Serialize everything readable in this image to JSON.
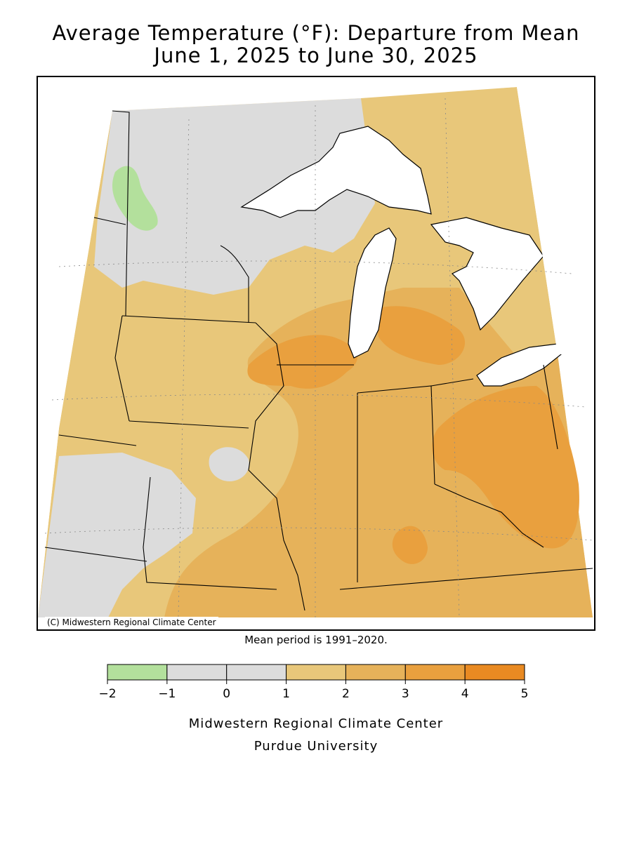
{
  "title": {
    "line1": "Average Temperature (°F): Departure from Mean",
    "line2": "June 1, 2025 to June 30, 2025"
  },
  "map": {
    "copyright": "(C) Midwestern Regional Climate Center"
  },
  "mean_note": "Mean period is 1991–2020.",
  "legend": {
    "bins": [
      {
        "from": -2,
        "to": -1,
        "color": "#b3e09c"
      },
      {
        "from": -1,
        "to": 0,
        "color": "#dcdcdc"
      },
      {
        "from": 0,
        "to": 1,
        "color": "#dcdcdc"
      },
      {
        "from": 1,
        "to": 2,
        "color": "#e8c77a"
      },
      {
        "from": 2,
        "to": 3,
        "color": "#e6b25a"
      },
      {
        "from": 3,
        "to": 4,
        "color": "#e9a03e"
      },
      {
        "from": 4,
        "to": 5,
        "color": "#e98a22"
      }
    ],
    "tick_labels": [
      "−2",
      "−1",
      "0",
      "1",
      "2",
      "3",
      "4",
      "5"
    ]
  },
  "credits": {
    "line1": "Midwestern Regional Climate Center",
    "line2": "Purdue University"
  },
  "colors": {
    "green": "#b3e09c",
    "gray": "#dcdcdc",
    "light_orange": "#e8c77a",
    "mid_orange": "#e6b25a",
    "dark_orange": "#e9a03e",
    "lake": "#ffffff"
  }
}
